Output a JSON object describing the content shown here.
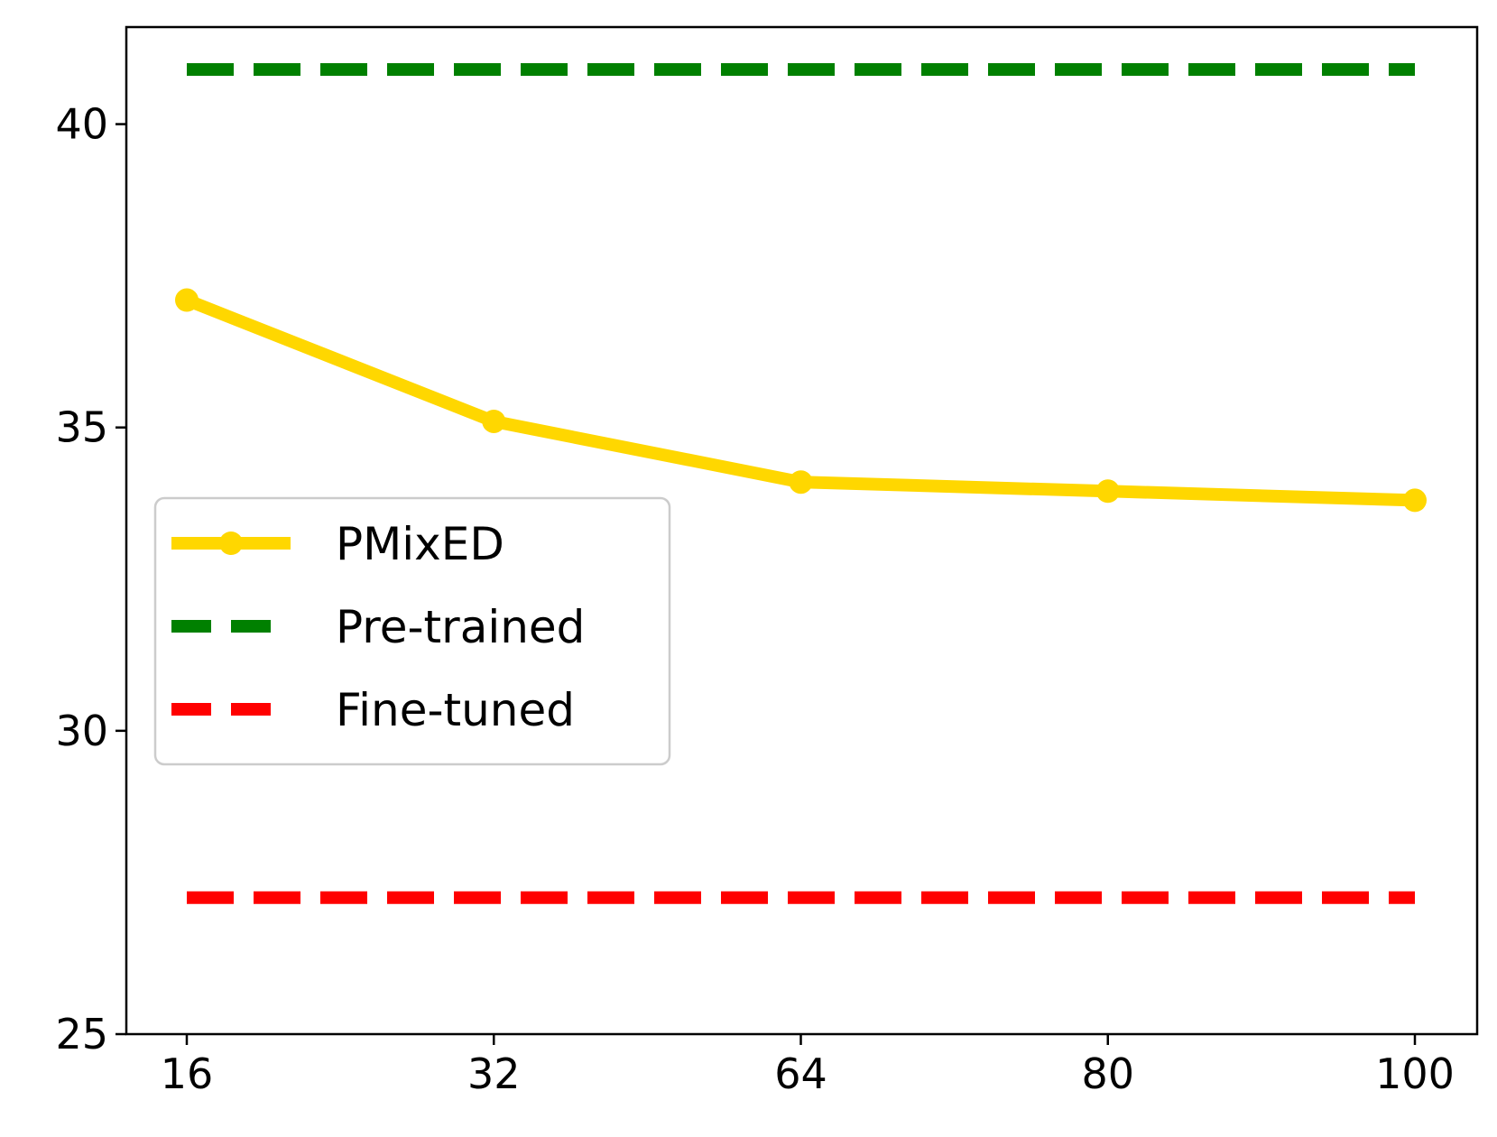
{
  "chart_data": {
    "type": "line",
    "x_categories": [
      "16",
      "32",
      "64",
      "80",
      "100"
    ],
    "ylim": [
      25,
      41.6
    ],
    "yticks": [
      25,
      30,
      35,
      40
    ],
    "grid": false,
    "legend_position": "center-left",
    "series": [
      {
        "name": "PMixED",
        "color": "#FFD700",
        "style": "solid",
        "marker": "circle",
        "values": [
          37.1,
          35.1,
          34.1,
          33.95,
          33.8
        ]
      },
      {
        "name": "Pre-trained",
        "color": "#008000",
        "style": "dashed",
        "marker": "none",
        "values": [
          40.9,
          40.9,
          40.9,
          40.9,
          40.9
        ]
      },
      {
        "name": "Fine-tuned",
        "color": "#FF0000",
        "style": "dashed",
        "marker": "none",
        "values": [
          27.25,
          27.25,
          27.25,
          27.25,
          27.25
        ]
      }
    ]
  }
}
